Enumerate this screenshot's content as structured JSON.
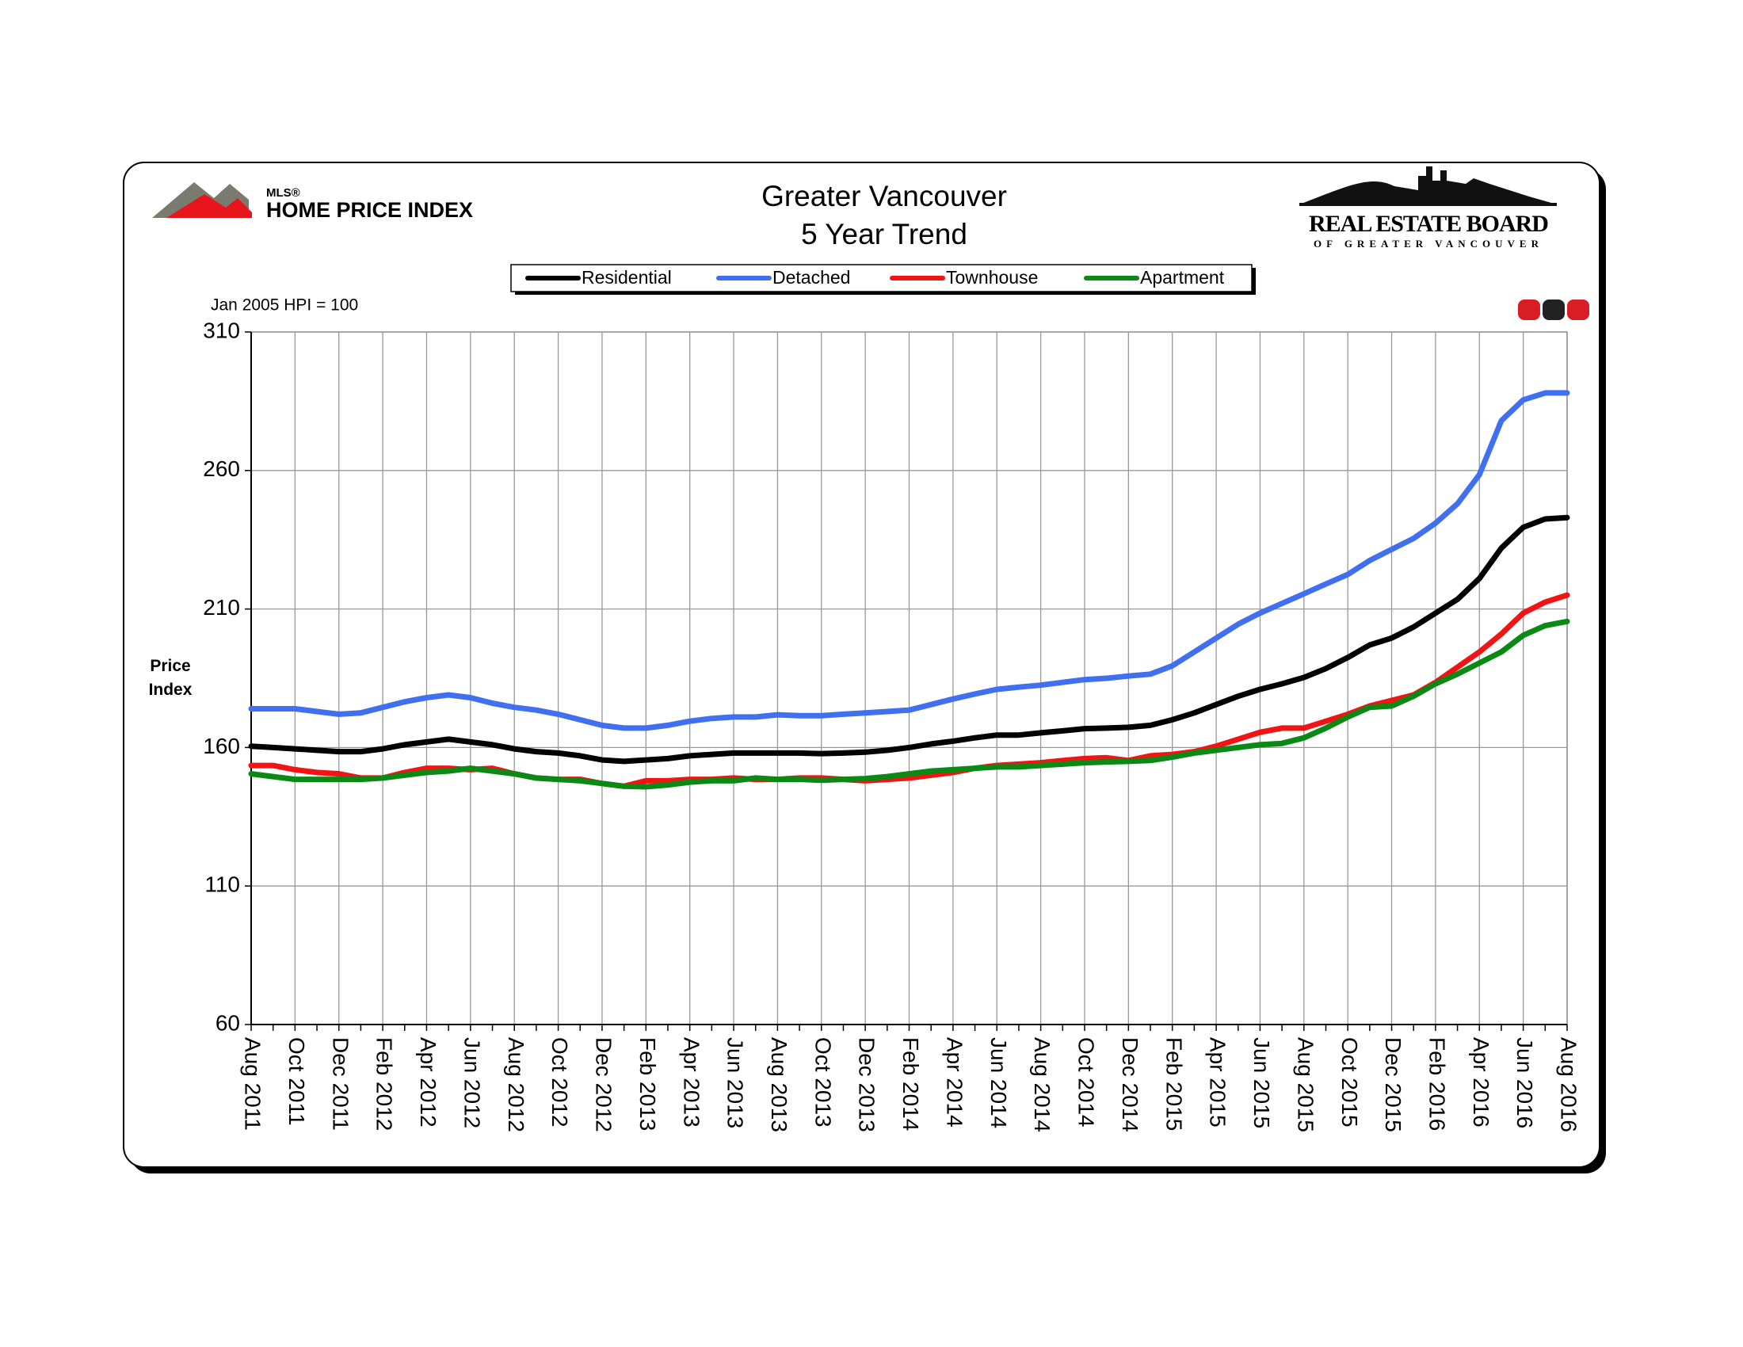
{
  "chart_data": {
    "type": "line",
    "title": "Greater Vancouver",
    "subtitle": "5 Year Trend",
    "annotation": "Jan 2005 HPI = 100",
    "ylabel": "Price Index",
    "logos": {
      "mls_small": "MLS®",
      "hpi": "HOME PRICE INDEX",
      "board": "REAL ESTATE BOARD",
      "board_sub": "OF GREATER VANCOUVER"
    },
    "categories": [
      "Aug 2011",
      null,
      "Oct 2011",
      null,
      "Dec 2011",
      null,
      "Feb 2012",
      null,
      "Apr 2012",
      null,
      "Jun 2012",
      null,
      "Aug 2012",
      null,
      "Oct 2012",
      null,
      "Dec 2012",
      null,
      "Feb 2013",
      null,
      "Apr 2013",
      null,
      "Jun 2013",
      null,
      "Aug 2013",
      null,
      "Oct 2013",
      null,
      "Dec 2013",
      null,
      "Feb 2014",
      null,
      "Apr 2014",
      null,
      "Jun 2014",
      null,
      "Aug 2014",
      null,
      "Oct 2014",
      null,
      "Dec 2014",
      null,
      "Feb 2015",
      null,
      "Apr 2015",
      null,
      "Jun 2015",
      null,
      "Aug 2015",
      null,
      "Oct 2015",
      null,
      "Dec 2015",
      null,
      "Feb 2016",
      null,
      "Apr 2016",
      null,
      "Jun 2016",
      null,
      "Aug 2016"
    ],
    "series": [
      {
        "name": "Residential",
        "color": "#000000",
        "values": [
          160.5,
          160,
          159.5,
          159,
          158.5,
          158.5,
          159.5,
          161,
          162,
          163,
          162,
          161,
          159.5,
          158.5,
          158,
          157,
          155.5,
          155,
          155.5,
          156,
          157,
          157.5,
          158,
          158,
          158,
          158,
          157.8,
          158,
          158.3,
          159,
          160,
          161.3,
          162.3,
          163.5,
          164.5,
          164.5,
          165.3,
          166,
          166.8,
          167,
          167.3,
          168,
          170,
          172.5,
          175.5,
          178.5,
          181,
          183,
          185.3,
          188.5,
          192.5,
          197,
          199.5,
          203.5,
          208.5,
          213.5,
          221,
          232,
          239.5,
          242.5,
          243
        ]
      },
      {
        "name": "Detached",
        "color": "#4070f0",
        "values": [
          174,
          174,
          174,
          173,
          172,
          172.5,
          174.5,
          176.5,
          178,
          179,
          178,
          176,
          174.5,
          173.5,
          172,
          170,
          168,
          167,
          167,
          168,
          169.5,
          170.5,
          171,
          171,
          171.8,
          171.5,
          171.5,
          172,
          172.5,
          173,
          173.5,
          175.5,
          177.5,
          179.3,
          181,
          181.8,
          182.5,
          183.5,
          184.5,
          185,
          185.8,
          186.5,
          189.5,
          194.5,
          199.5,
          204.5,
          208.5,
          212,
          215.5,
          219,
          222.5,
          227.5,
          231.5,
          235.5,
          241,
          248,
          258.5,
          278,
          285.5,
          288,
          288
        ]
      },
      {
        "name": "Townhouse",
        "color": "#f01414",
        "values": [
          153.5,
          153.5,
          152,
          151,
          150.5,
          149,
          149,
          151,
          152.5,
          152.5,
          152,
          152.5,
          150.5,
          149,
          148.5,
          148.5,
          147,
          146,
          148,
          148,
          148.5,
          148.5,
          149,
          148.5,
          148.5,
          149,
          149,
          148.5,
          148,
          148.5,
          149,
          150,
          151,
          152.5,
          153.5,
          154,
          154.5,
          155.3,
          156,
          156.3,
          155.3,
          157,
          157.5,
          158.5,
          160.5,
          163,
          165.5,
          167,
          167,
          169.5,
          172,
          175,
          177,
          179,
          183.5,
          189,
          194.5,
          201,
          208.5,
          212.5,
          215
        ]
      },
      {
        "name": "Apartment",
        "color": "#0a8a14",
        "values": [
          150.5,
          149.5,
          148.5,
          148.5,
          148.5,
          148.5,
          149,
          150,
          151,
          151.5,
          152.5,
          151.5,
          150.5,
          149,
          148.5,
          148,
          147,
          146,
          145.8,
          146.5,
          147.5,
          148,
          148,
          149,
          148.5,
          148.5,
          148.2,
          148.5,
          148.8,
          149.5,
          150.5,
          151.5,
          152,
          152.5,
          153,
          153,
          153.5,
          154,
          154.5,
          154.8,
          155,
          155.3,
          156.5,
          158,
          159,
          160,
          161,
          161.5,
          163.5,
          167,
          171,
          174.5,
          175,
          178.5,
          183,
          186.5,
          190.5,
          194.5,
          200.5,
          204,
          205.5
        ]
      }
    ],
    "ylim": [
      60,
      310
    ],
    "yticks": [
      60,
      110,
      160,
      210,
      260,
      310
    ],
    "grid": true
  }
}
